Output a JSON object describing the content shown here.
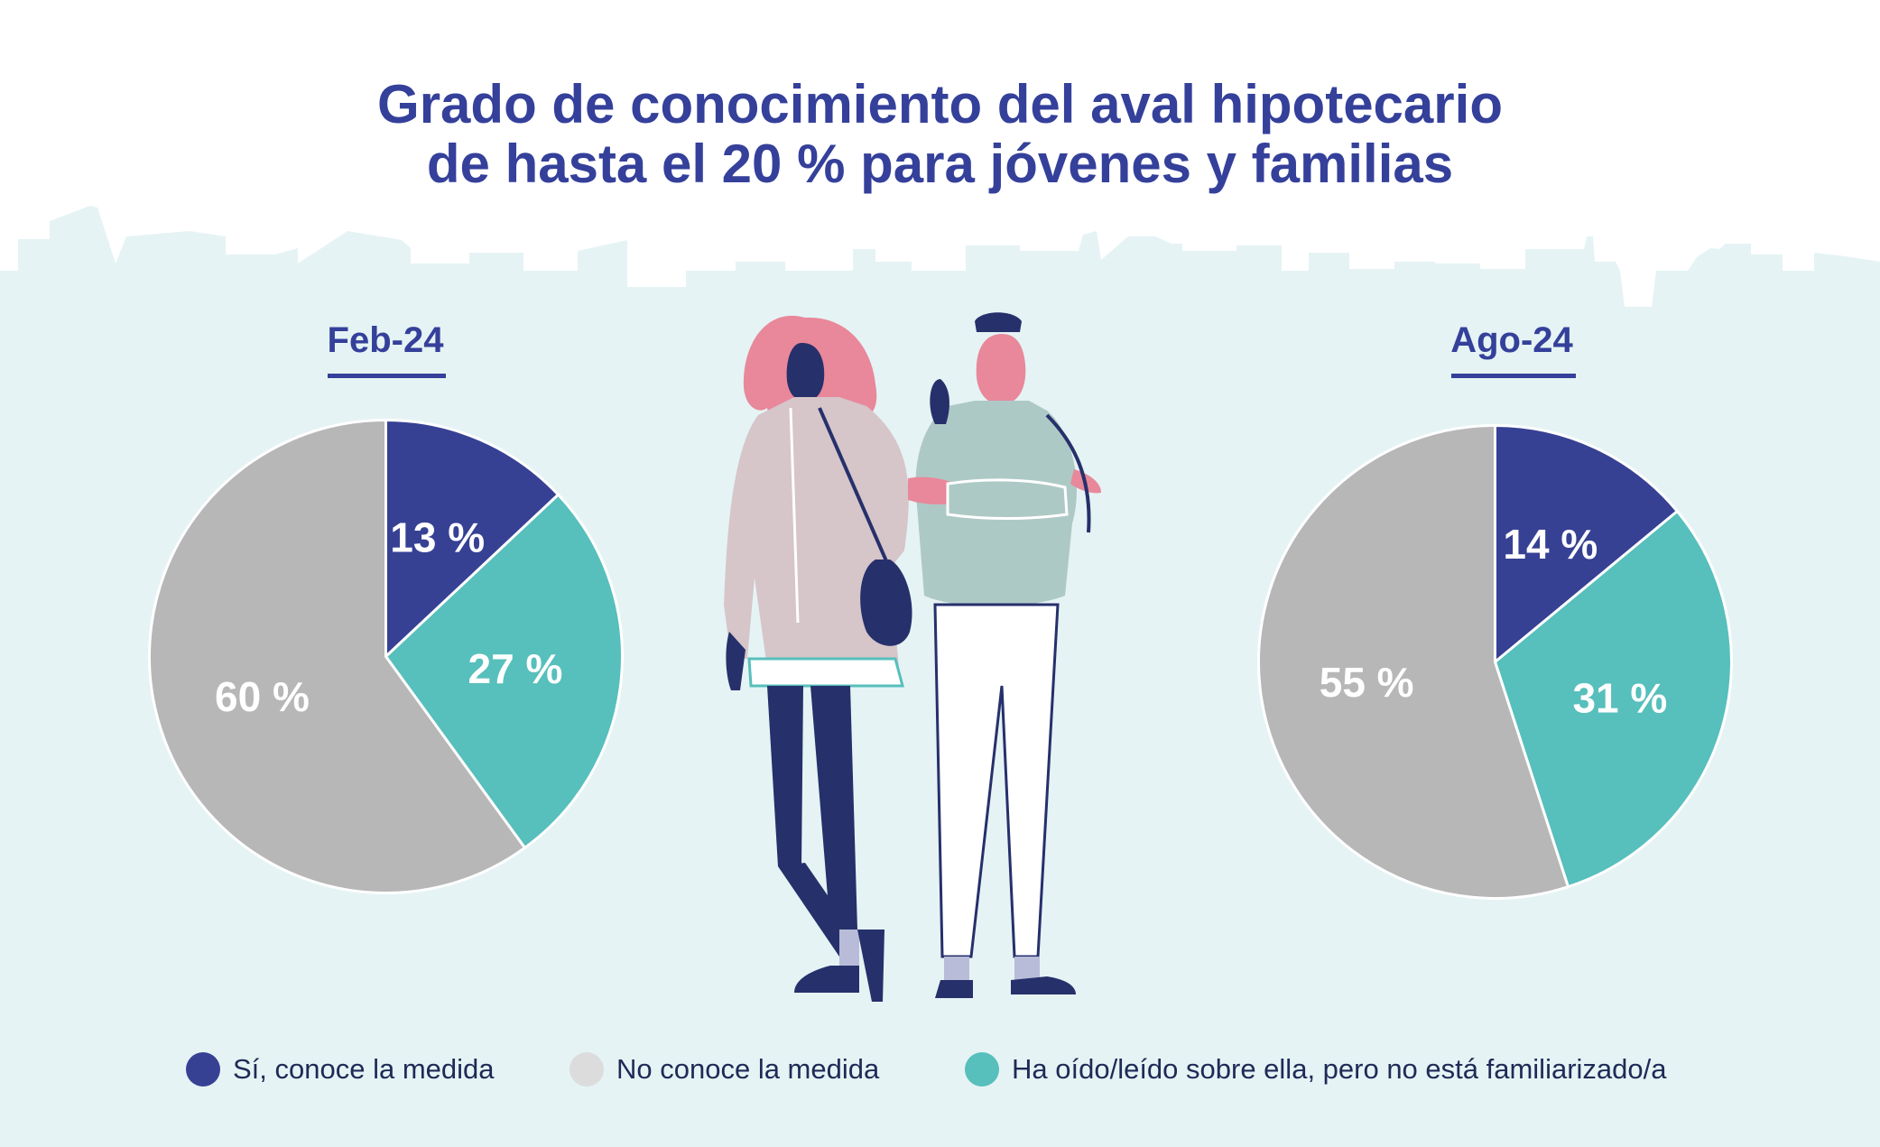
{
  "title_lines": [
    "Grado de conocimiento del aval hipotecario",
    "de hasta el 20 % para jóvenes y familias"
  ],
  "colors": {
    "si": "#364194",
    "no": "#b7b7b7",
    "oido": "#57bfbc",
    "background": "#e5f3f4",
    "title": "#34409a"
  },
  "chart_data": [
    {
      "type": "pie",
      "period": "Feb-24",
      "slices": [
        {
          "category": "Sí, conoce la medida",
          "value": 13,
          "label": "13 %"
        },
        {
          "category": "Ha oído/leído sobre ella, pero no está familiarizado/a",
          "value": 27,
          "label": "27 %"
        },
        {
          "category": "No conoce la medida",
          "value": 60,
          "label": "60 %"
        }
      ]
    },
    {
      "type": "pie",
      "period": "Ago-24",
      "slices": [
        {
          "category": "Sí, conoce la medida",
          "value": 14,
          "label": "14 %"
        },
        {
          "category": "Ha oído/leído sobre ella, pero no está familiarizado/a",
          "value": 31,
          "label": "31 %"
        },
        {
          "category": "No conoce la medida",
          "value": 55,
          "label": "55 %"
        }
      ]
    }
  ],
  "legend": [
    {
      "label": "Sí, conoce la medida",
      "color_key": "si"
    },
    {
      "label": "No conoce la medida",
      "color_key": "no"
    },
    {
      "label": "Ha oído/leído sobre ella, pero no está familiarizado/a",
      "color_key": "oido"
    }
  ]
}
